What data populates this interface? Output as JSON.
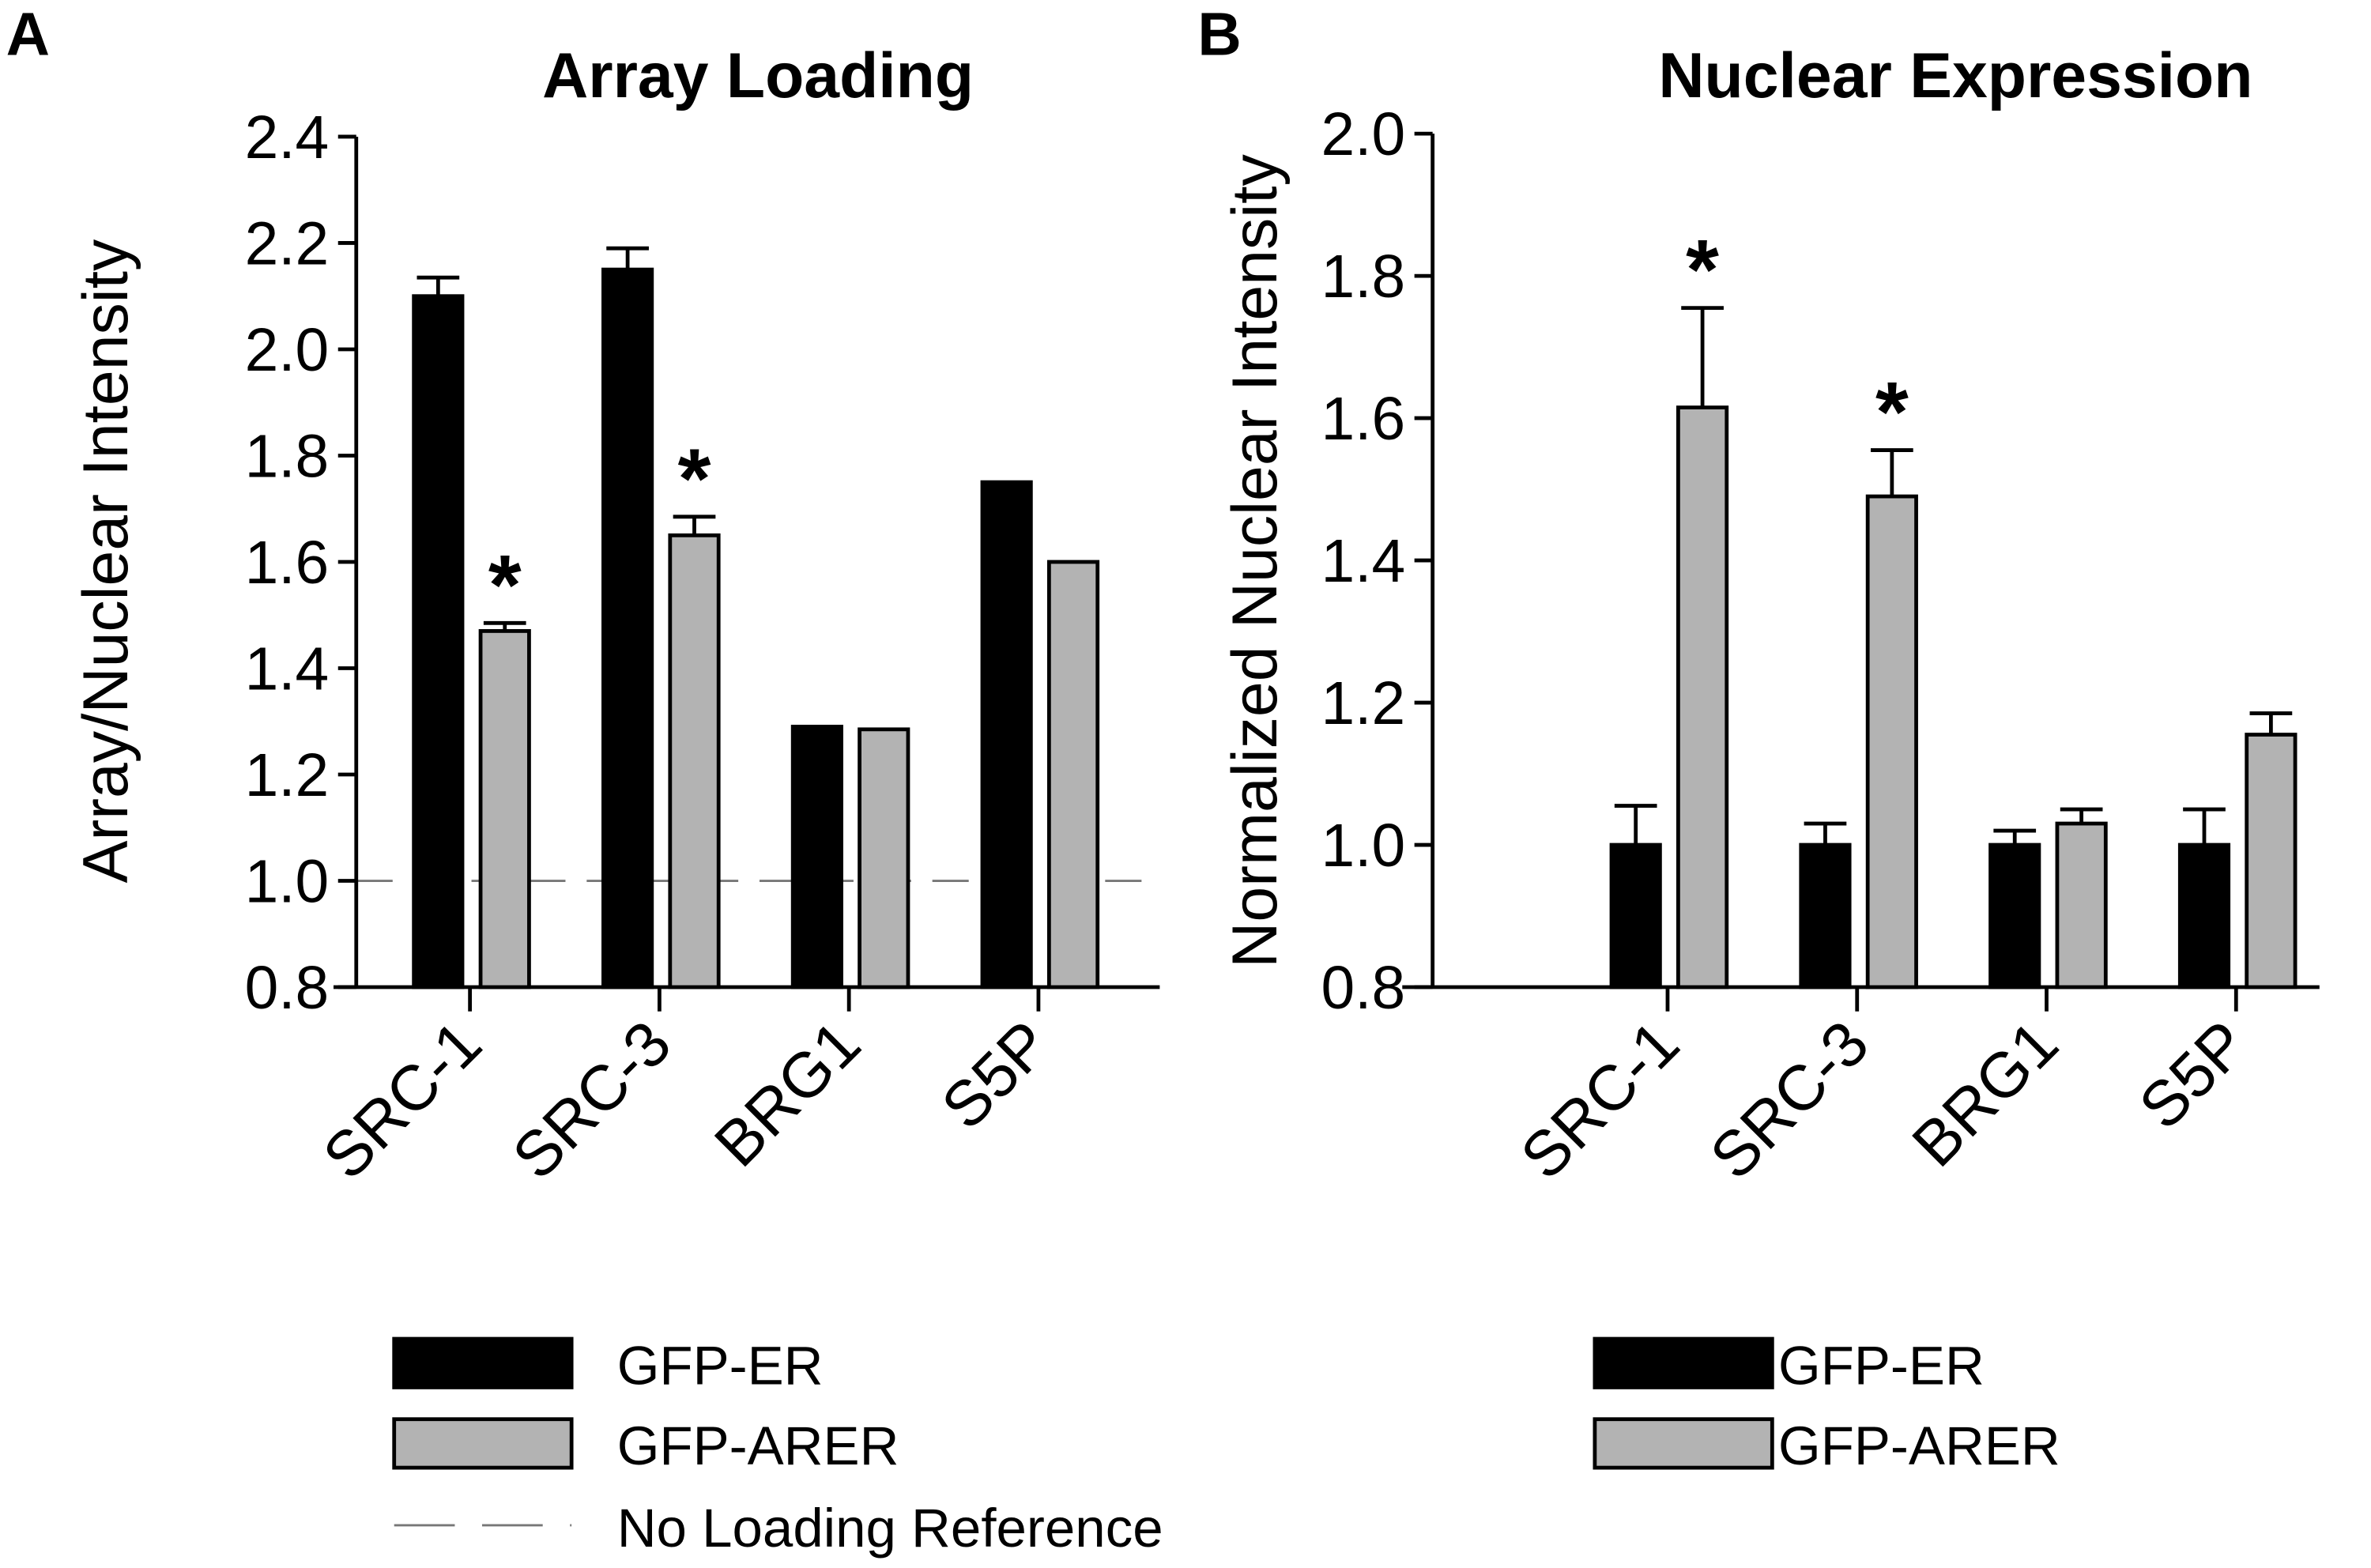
{
  "colors": {
    "GFP-ER": "#000000",
    "GFP-ARER": "#b3b3b3",
    "reference": "#777777"
  },
  "chart_data": [
    {
      "type": "bar",
      "panel": "A",
      "title": "Array Loading",
      "xlabel": "",
      "ylabel": "Array/Nuclear Intensity",
      "ylim": [
        0.8,
        2.4
      ],
      "yticks": [
        "0.8",
        "1.0",
        "1.2",
        "1.4",
        "1.6",
        "1.8",
        "2.0",
        "2.2",
        "2.4"
      ],
      "categories": [
        "SRC-1",
        "SRC-3",
        "BRG1",
        "S5P"
      ],
      "series": [
        {
          "name": "GFP-ER",
          "values": [
            2.1,
            2.15,
            1.29,
            1.75
          ],
          "error_upper": [
            2.135,
            2.19,
            1.29,
            1.75
          ]
        },
        {
          "name": "GFP-ARER",
          "values": [
            1.47,
            1.65,
            1.285,
            1.6
          ],
          "error_upper": [
            1.485,
            1.685,
            1.285,
            1.6
          ],
          "significant": [
            true,
            true,
            false,
            false
          ]
        }
      ],
      "reference_line": {
        "value": 1.0,
        "label": "No Loading Reference"
      },
      "significance_marker": "*",
      "legend": [
        "GFP-ER",
        "GFP-ARER",
        "No Loading Reference"
      ],
      "legend_position": "bottom"
    },
    {
      "type": "bar",
      "panel": "B",
      "title": "Nuclear Expression",
      "xlabel": "",
      "ylabel": "Normalized Nuclear Intensity",
      "ylim": [
        0.8,
        2.0
      ],
      "yticks": [
        "0.8",
        "1.0",
        "1.2",
        "1.4",
        "1.6",
        "1.8",
        "2.0"
      ],
      "categories": [
        "SRC-1",
        "SRC-3",
        "BRG1",
        "S5P"
      ],
      "series": [
        {
          "name": "GFP-ER",
          "values": [
            1.0,
            1.0,
            1.0,
            1.0
          ],
          "error_upper": [
            1.055,
            1.03,
            1.02,
            1.05
          ]
        },
        {
          "name": "GFP-ARER",
          "values": [
            1.615,
            1.49,
            1.03,
            1.155
          ],
          "error_upper": [
            1.755,
            1.555,
            1.05,
            1.185
          ],
          "significant": [
            true,
            true,
            false,
            false
          ]
        }
      ],
      "significance_marker": "*",
      "legend": [
        "GFP-ER",
        "GFP-ARER"
      ],
      "legend_position": "bottom"
    }
  ]
}
